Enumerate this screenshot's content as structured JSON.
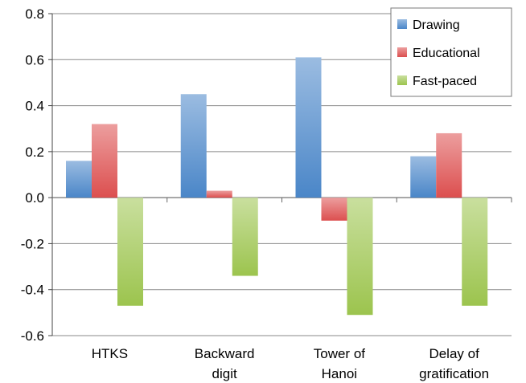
{
  "chart_data": {
    "type": "bar",
    "categories": [
      [
        "HTKS"
      ],
      [
        "Backward",
        "digit"
      ],
      [
        "Tower of",
        "Hanoi"
      ],
      [
        "Delay of",
        "gratification"
      ]
    ],
    "series": [
      {
        "name": "Drawing",
        "color": "#4a86c8",
        "values": [
          0.16,
          0.45,
          0.61,
          0.18
        ]
      },
      {
        "name": "Educational",
        "color": "#dc4f4f",
        "values": [
          0.32,
          0.03,
          -0.1,
          0.28
        ]
      },
      {
        "name": "Fast-paced",
        "color": "#9cc44e",
        "values": [
          -0.47,
          -0.34,
          -0.51,
          -0.47
        ]
      }
    ],
    "ylim": [
      -0.6,
      0.8
    ],
    "yticks": [
      "-0.6",
      "-0.4",
      "-0.2",
      "0.0",
      "0.2",
      "0.4",
      "0.6",
      "0.8"
    ],
    "ytick_values": [
      -0.6,
      -0.4,
      -0.2,
      0.0,
      0.2,
      0.4,
      0.6,
      0.8
    ],
    "grid": true,
    "legend_position": "top-right",
    "title": "",
    "xlabel": "",
    "ylabel": ""
  }
}
